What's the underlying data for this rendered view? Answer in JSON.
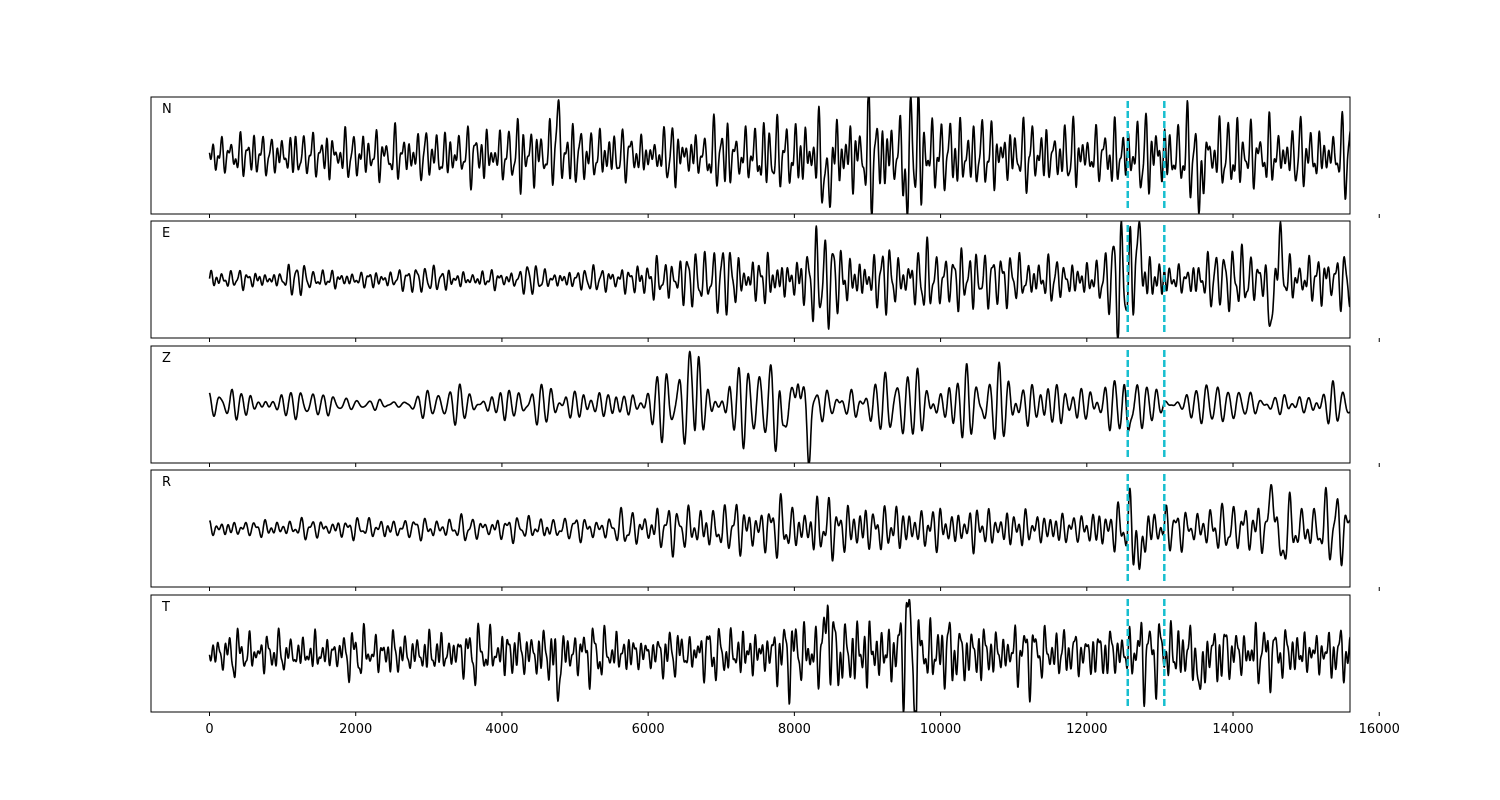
{
  "chart_data": {
    "type": "line",
    "layout": "stacked-panels",
    "xlim": [
      -800,
      15600
    ],
    "x_ticks": [
      0,
      2000,
      4000,
      6000,
      8000,
      10000,
      12000,
      14000,
      16000
    ],
    "x_tick_labels": [
      "0",
      "2000",
      "4000",
      "6000",
      "8000",
      "10000",
      "12000",
      "14000",
      "16000"
    ],
    "y_ticks_visible": false,
    "grid": false,
    "trace_color": "#000000",
    "marker_color": "#17becf",
    "markers_x": [
      12560,
      13060
    ],
    "series": [
      {
        "name": "N",
        "n_samples": 15800,
        "ylim": [
          -1.3,
          1.3
        ],
        "envelope": [
          [
            0,
            0.45
          ],
          [
            3500,
            0.55
          ],
          [
            4700,
            0.7
          ],
          [
            6000,
            0.5
          ],
          [
            7500,
            0.7
          ],
          [
            8500,
            0.95
          ],
          [
            9600,
            1.0
          ],
          [
            10500,
            0.75
          ],
          [
            12000,
            0.6
          ],
          [
            13000,
            0.85
          ],
          [
            14500,
            0.65
          ],
          [
            15800,
            0.65
          ]
        ],
        "events": [
          [
            4760,
            0.9,
            30
          ],
          [
            8450,
            -1.05,
            35
          ],
          [
            9550,
            -1.1,
            35
          ],
          [
            9600,
            1.0,
            30
          ],
          [
            13550,
            -0.95,
            35
          ]
        ]
      },
      {
        "name": "E",
        "n_samples": 15800,
        "ylim": [
          -1.3,
          1.3
        ],
        "envelope": [
          [
            0,
            0.2
          ],
          [
            5500,
            0.22
          ],
          [
            5800,
            0.4
          ],
          [
            7000,
            0.55
          ],
          [
            8500,
            0.7
          ],
          [
            10500,
            0.55
          ],
          [
            12000,
            0.45
          ],
          [
            12700,
            0.9
          ],
          [
            13200,
            0.4
          ],
          [
            14000,
            0.55
          ],
          [
            15800,
            0.55
          ]
        ],
        "events": [
          [
            12710,
            1.05,
            40
          ],
          [
            14530,
            -1.1,
            50
          ],
          [
            14620,
            0.85,
            55
          ]
        ]
      },
      {
        "name": "Z",
        "n_samples": 15800,
        "ylim": [
          -1.3,
          1.3
        ],
        "envelope": [
          [
            0,
            0.25
          ],
          [
            4000,
            0.3
          ],
          [
            6000,
            0.3
          ],
          [
            6500,
            0.9
          ],
          [
            7500,
            0.8
          ],
          [
            8200,
            0.95
          ],
          [
            9000,
            0.6
          ],
          [
            10500,
            0.6
          ],
          [
            12000,
            0.45
          ],
          [
            12500,
            0.5
          ],
          [
            13000,
            0.4
          ],
          [
            15800,
            0.4
          ]
        ],
        "events": [
          [
            6620,
            1.05,
            30
          ],
          [
            7830,
            -0.8,
            30
          ],
          [
            8050,
            0.75,
            30
          ],
          [
            8200,
            -1.1,
            30
          ],
          [
            12560,
            -0.55,
            30
          ]
        ]
      },
      {
        "name": "R",
        "n_samples": 15800,
        "ylim": [
          -1.3,
          1.3
        ],
        "envelope": [
          [
            0,
            0.2
          ],
          [
            5500,
            0.25
          ],
          [
            5800,
            0.4
          ],
          [
            7000,
            0.55
          ],
          [
            8500,
            0.7
          ],
          [
            10500,
            0.55
          ],
          [
            12000,
            0.45
          ],
          [
            12700,
            0.85
          ],
          [
            13200,
            0.4
          ],
          [
            14000,
            0.55
          ],
          [
            15800,
            0.55
          ]
        ],
        "events": [
          [
            12730,
            -0.95,
            40
          ],
          [
            14550,
            1.1,
            50
          ],
          [
            14640,
            -0.8,
            55
          ]
        ]
      },
      {
        "name": "T",
        "n_samples": 15800,
        "ylim": [
          -1.3,
          1.3
        ],
        "envelope": [
          [
            0,
            0.45
          ],
          [
            3500,
            0.55
          ],
          [
            4700,
            0.7
          ],
          [
            6000,
            0.5
          ],
          [
            7500,
            0.7
          ],
          [
            8500,
            0.95
          ],
          [
            9600,
            1.0
          ],
          [
            10500,
            0.75
          ],
          [
            12000,
            0.6
          ],
          [
            13000,
            0.85
          ],
          [
            14500,
            0.65
          ],
          [
            15800,
            0.65
          ]
        ],
        "events": [
          [
            4760,
            -0.9,
            30
          ],
          [
            8450,
            0.95,
            35
          ],
          [
            9550,
            1.0,
            35
          ],
          [
            9650,
            -1.05,
            30
          ],
          [
            13550,
            -0.95,
            35
          ]
        ]
      }
    ]
  }
}
